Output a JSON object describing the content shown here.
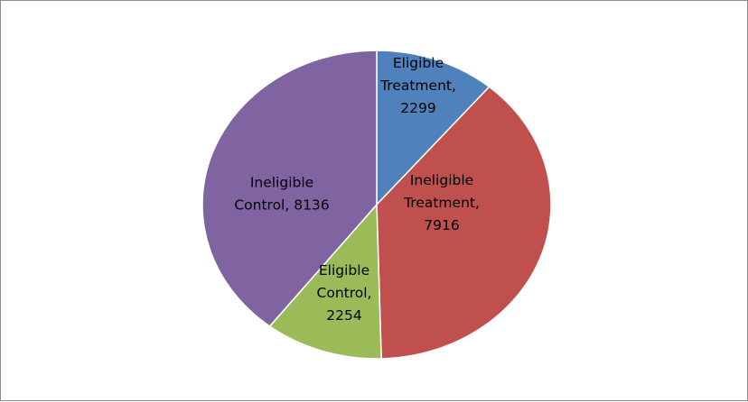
{
  "chart_data": {
    "type": "pie",
    "slices": [
      {
        "label": "Eligible Treatment",
        "value": 2299,
        "color": "#4F81BD",
        "label_lines": [
          "Eligible",
          "Treatment,",
          "2299"
        ]
      },
      {
        "label": "Ineligible Treatment",
        "value": 7916,
        "color": "#C0504D",
        "label_lines": [
          "Ineligible",
          "Treatment,",
          "7916"
        ]
      },
      {
        "label": "Eligible Control",
        "value": 2254,
        "color": "#9BBB59",
        "label_lines": [
          "Eligible",
          "Control,",
          "2254"
        ]
      },
      {
        "label": "Ineligible Control",
        "value": 8136,
        "color": "#8064A2",
        "label_lines": [
          "Ineligible",
          "Control, 8136"
        ]
      }
    ],
    "start_angle": "12 o'clock",
    "direction": "clockwise",
    "legend": "none"
  }
}
